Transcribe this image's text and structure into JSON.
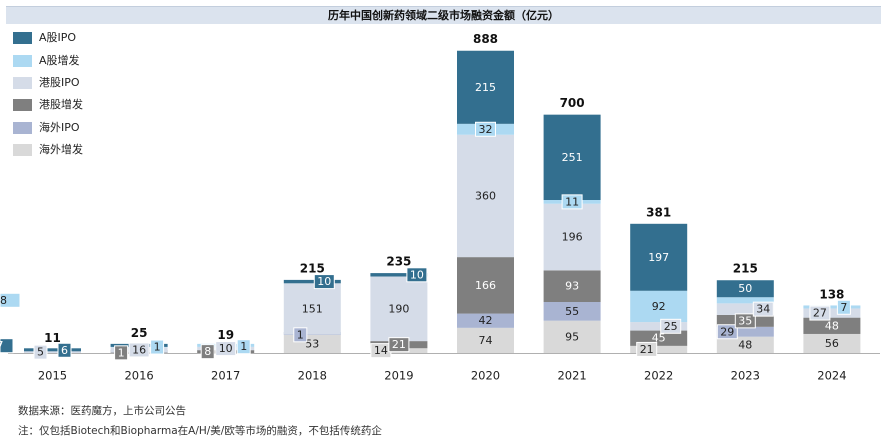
{
  "chart_data": {
    "type": "bar",
    "stacked": true,
    "title": "历年中国创新药领域二级市场融资金额（亿元）",
    "categories": [
      "2015",
      "2016",
      "2017",
      "2018",
      "2019",
      "2020",
      "2021",
      "2022",
      "2023",
      "2024"
    ],
    "totals": [
      11,
      25,
      19,
      215,
      235,
      888,
      700,
      381,
      215,
      138
    ],
    "series": [
      {
        "name": "海外增发",
        "color": "#d9d9d9",
        "values": [
          0,
          0,
          0,
          53,
          14,
          74,
          95,
          21,
          48,
          56
        ]
      },
      {
        "name": "海外IPO",
        "color": "#a9b4d2",
        "values": [
          0,
          0,
          0,
          1,
          0,
          42,
          55,
          0,
          29,
          0
        ]
      },
      {
        "name": "港股增发",
        "color": "#7f7f7f",
        "values": [
          0,
          1,
          8,
          0,
          21,
          166,
          93,
          45,
          35,
          48
        ]
      },
      {
        "name": "港股IPO",
        "color": "#d5dce8",
        "values": [
          5,
          16,
          10,
          151,
          190,
          360,
          196,
          25,
          34,
          27
        ]
      },
      {
        "name": "A股增发",
        "color": "#acd9f2",
        "values": [
          0,
          1,
          1,
          0,
          0,
          32,
          11,
          92,
          18,
          7
        ]
      },
      {
        "name": "A股IPO",
        "color": "#336f8f",
        "values": [
          6,
          7,
          0,
          10,
          10,
          215,
          251,
          197,
          50,
          0
        ]
      }
    ],
    "legend_position": "top-left",
    "grid": false
  },
  "notes": {
    "source": "数据来源：医药魔方，上市公司公告",
    "note": "注：仅包括Biotech和Biopharma在A/H/美/欧等市场的融资，不包括传统药企"
  }
}
